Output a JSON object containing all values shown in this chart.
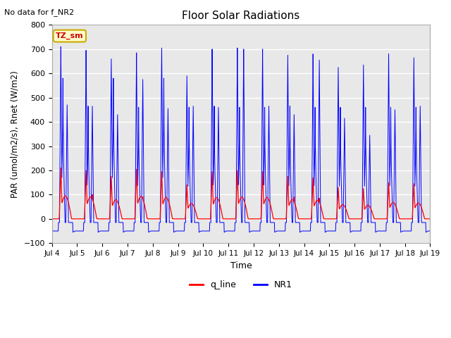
{
  "title": "Floor Solar Radiations",
  "xlabel": "Time",
  "ylabel": "PAR (umol/m2/s), Rnet (W/m2)",
  "ylim": [
    -100,
    800
  ],
  "yticks": [
    -100,
    0,
    100,
    200,
    300,
    400,
    500,
    600,
    700,
    800
  ],
  "no_data_text": "No data for f_NR2",
  "legend_label1": "q_line",
  "legend_label2": "NR1",
  "legend_color1": "#ff0000",
  "legend_color2": "#0000ff",
  "tz_label": "TZ_sm",
  "tz_bg_color": "#ffffcc",
  "tz_border_color": "#ccaa00",
  "bg_color": "#e8e8e8",
  "grid_color": "#ffffff",
  "n_days": 15,
  "start_day": 4,
  "nr1_peak1": [
    710,
    695,
    660,
    685,
    705,
    590,
    700,
    705,
    700,
    675,
    680,
    625,
    635,
    680,
    665
  ],
  "nr1_peak2": [
    470,
    465,
    430,
    575,
    455,
    465,
    460,
    700,
    465,
    430,
    655,
    415,
    345,
    450,
    465
  ],
  "nr1_shoulder1": [
    580,
    465,
    580,
    460,
    580,
    460,
    465,
    460,
    460,
    465,
    460,
    460,
    460,
    460,
    460
  ],
  "q_peak1": [
    210,
    200,
    175,
    205,
    195,
    140,
    195,
    200,
    195,
    175,
    170,
    130,
    125,
    150,
    145
  ],
  "q_peak2": [
    45,
    100,
    45,
    90,
    40,
    45,
    35,
    40,
    35,
    90,
    85,
    30,
    35,
    35,
    25
  ],
  "nr1_night": -50,
  "q_night": 0
}
